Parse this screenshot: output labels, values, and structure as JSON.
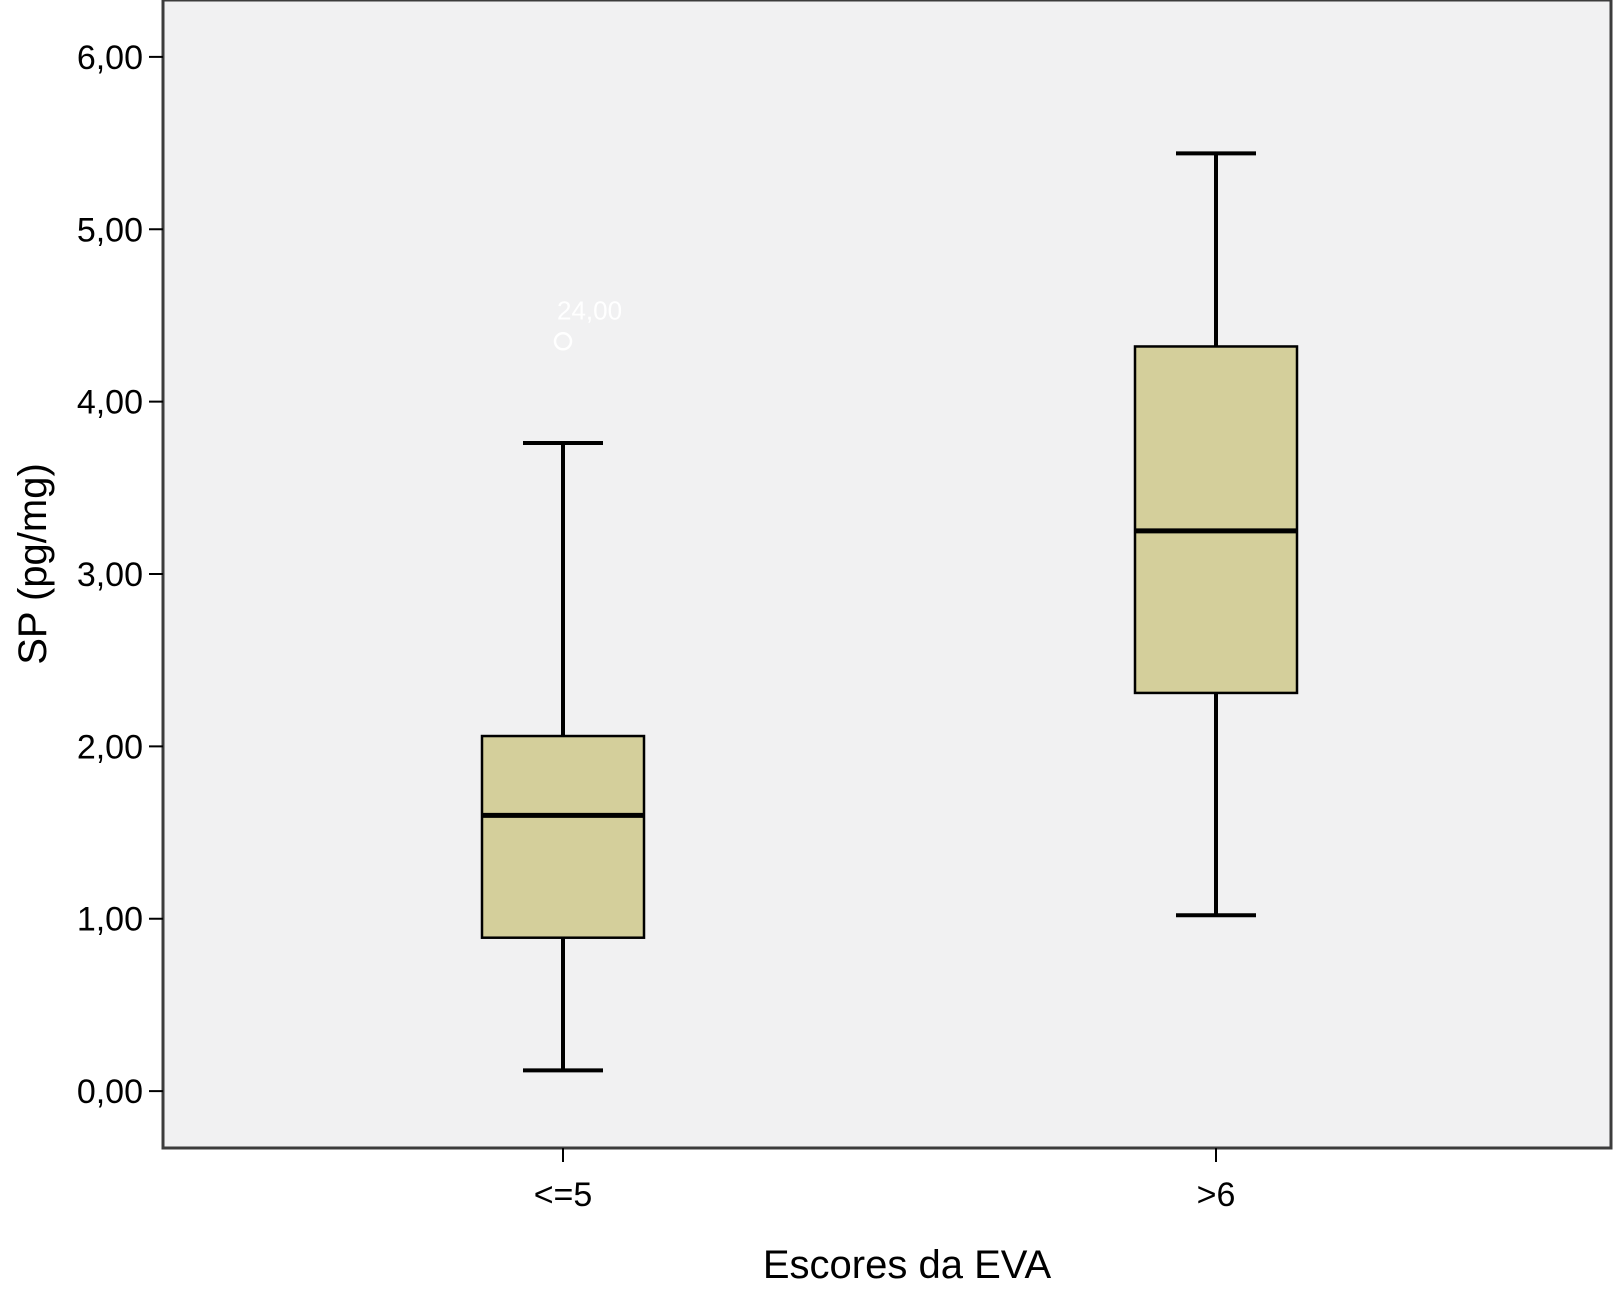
{
  "chart_data": {
    "type": "boxplot",
    "title": "",
    "xlabel": "Escores da EVA",
    "ylabel": "SP (pg/mg)",
    "ylim": [
      -0.33,
      6.33
    ],
    "yticks": [
      {
        "value": 0,
        "label": "0,00"
      },
      {
        "value": 1,
        "label": "1,00"
      },
      {
        "value": 2,
        "label": "2,00"
      },
      {
        "value": 3,
        "label": "3,00"
      },
      {
        "value": 4,
        "label": "4,00"
      },
      {
        "value": 5,
        "label": "5,00"
      },
      {
        "value": 6,
        "label": "6,00"
      }
    ],
    "categories": [
      "<=5",
      ">6"
    ],
    "boxes": [
      {
        "category": "<=5",
        "whisker_low": 0.12,
        "q1": 0.89,
        "median": 1.6,
        "q3": 2.06,
        "whisker_high": 3.76,
        "outliers": [
          {
            "value": 4.35,
            "label": "24,00"
          }
        ]
      },
      {
        "category": ">6",
        "whisker_low": 1.02,
        "q1": 2.31,
        "median": 3.25,
        "q3": 4.32,
        "whisker_high": 5.44,
        "outliers": []
      }
    ],
    "grid": false,
    "colors": {
      "plot_background": "#f1f1f2",
      "box_fill": "#d4cf9b",
      "line": "#000000",
      "outlier": "#ffffff"
    }
  }
}
